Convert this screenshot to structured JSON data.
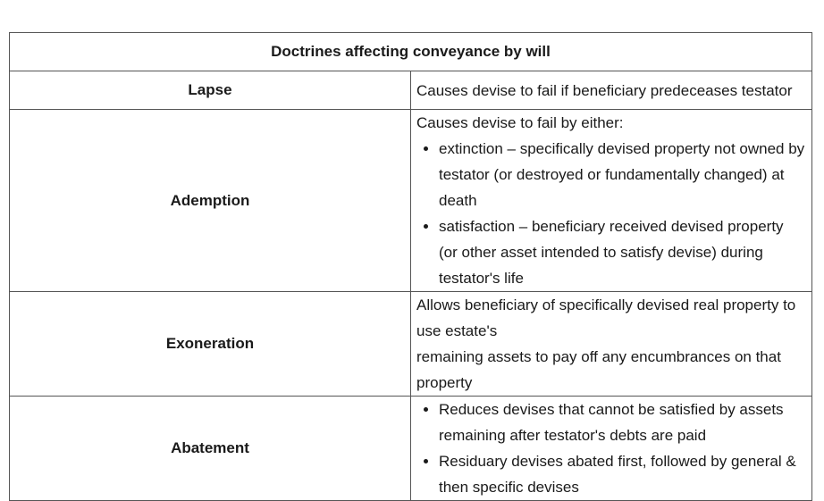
{
  "table": {
    "title": "Doctrines affecting conveyance by will",
    "rows": {
      "lapse": {
        "term": "Lapse",
        "description": "Causes devise to fail if beneficiary predeceases testator"
      },
      "ademption": {
        "term": "Ademption",
        "intro": "Causes devise to fail by either:",
        "bullets": [
          "extinction – specifically devised property not owned by testator (or destroyed or fundamentally changed) at death",
          "satisfaction – beneficiary received devised property (or other asset intended to satisfy devise) during testator's life"
        ]
      },
      "exoneration": {
        "term": "Exoneration",
        "line1": "Allows beneficiary of specifically devised real property to use estate's",
        "line2": "remaining assets to pay off any encumbrances on that property"
      },
      "abatement": {
        "term": "Abatement",
        "bullets": [
          "Reduces devises that cannot be satisfied by assets remaining after testator's debts are paid",
          "Residuary devises abated first, followed by general & then specific devises"
        ]
      }
    }
  }
}
